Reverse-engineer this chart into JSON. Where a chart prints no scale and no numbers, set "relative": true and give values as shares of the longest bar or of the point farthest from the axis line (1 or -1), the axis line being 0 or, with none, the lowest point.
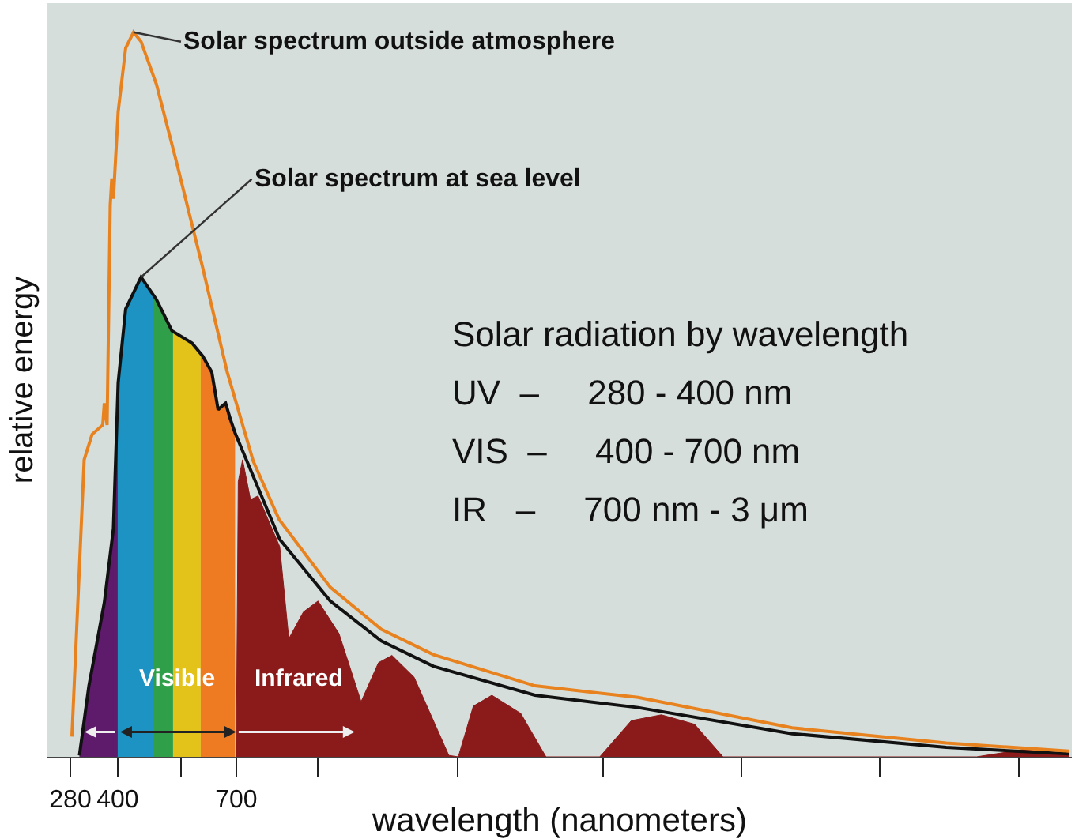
{
  "chart_data": {
    "type": "line",
    "relative": true,
    "xlabel": "wavelength (nanometers)",
    "ylabel": "relative energy",
    "xlim": [
      222,
      2815
    ],
    "xticks": [
      280,
      400,
      700,
      {
        "value": 560,
        "label": null
      },
      {
        "value": 907,
        "label": null
      },
      {
        "value": 1260,
        "label": null
      },
      {
        "value": 1628,
        "label": null
      },
      {
        "value": 1979,
        "label": null
      },
      {
        "value": 2329,
        "label": null
      },
      {
        "value": 2680,
        "label": null
      }
    ],
    "grid": false,
    "series": [
      {
        "type": "area",
        "color": "#5e1a6b",
        "x": [
          303,
          327,
          366,
          389,
          400
        ],
        "values": [
          0.002,
          0.098,
          0.213,
          0.315,
          0.516
        ]
      },
      {
        "type": "area",
        "color": "#1c93c2",
        "x": [
          400,
          401,
          420,
          459,
          490
        ],
        "values": [
          0.516,
          0.516,
          0.618,
          0.662,
          0.638
        ]
      },
      {
        "type": "area",
        "color": "#2f9f4a",
        "x": [
          490,
          498,
          537,
          540
        ],
        "values": [
          0.638,
          0.631,
          0.588,
          0.587
        ]
      },
      {
        "type": "area",
        "color": "#e3c21a",
        "x": [
          540,
          588,
          610
        ],
        "values": [
          0.587,
          0.571,
          0.556
        ]
      },
      {
        "type": "area",
        "color": "#ee7a22",
        "x": [
          610,
          615,
          638,
          654,
          673,
          685,
          697
        ],
        "values": [
          0.556,
          0.553,
          0.531,
          0.479,
          0.488,
          0.466,
          0.445
        ]
      },
      {
        "type": "area",
        "color": "#8b1a1a",
        "x": [
          700,
          705,
          716,
          736,
          755,
          810,
          833,
          870,
          907,
          960,
          1016,
          1060,
          1094,
          1150,
          1238,
          1262,
          1300,
          1347,
          1420,
          1484,
          1620,
          1700,
          1776,
          1860,
          1932,
          2574,
          2690,
          2808
        ],
        "values": [
          0,
          0.38,
          0.41,
          0.355,
          0.36,
          0.29,
          0.163,
          0.2,
          0.215,
          0.17,
          0.076,
          0.13,
          0.14,
          0.11,
          0.002,
          0,
          0.07,
          0.085,
          0.06,
          0,
          0,
          0.05,
          0.058,
          0.045,
          0,
          0,
          0.01,
          0.004
        ]
      },
      {
        "name": "Solar spectrum at sea level",
        "color": "#111111",
        "x": [
          303,
          327,
          366,
          389,
          401,
          420,
          459,
          498,
          537,
          588,
          615,
          638,
          654,
          673,
          685,
          697,
          810,
          938,
          1067,
          1199,
          1456,
          1717,
          2107,
          2497,
          2808
        ],
        "values": [
          0.002,
          0.098,
          0.213,
          0.315,
          0.516,
          0.618,
          0.662,
          0.631,
          0.588,
          0.571,
          0.553,
          0.531,
          0.479,
          0.488,
          0.466,
          0.447,
          0.3,
          0.215,
          0.16,
          0.125,
          0.085,
          0.068,
          0.032,
          0.013,
          0.004
        ]
      },
      {
        "name": "Solar spectrum outside atmosphere",
        "color": "#e8821e",
        "x": [
          284,
          315,
          335,
          362,
          366,
          373,
          381,
          385,
          389,
          401,
          420,
          440,
          459,
          498,
          549,
          615,
          677,
          743,
          808,
          938,
          1067,
          1199,
          1456,
          1717,
          2107,
          2497,
          2808
        ],
        "values": [
          0.028,
          0.41,
          0.445,
          0.458,
          0.488,
          0.458,
          0.761,
          0.798,
          0.77,
          0.89,
          0.978,
          1.0,
          0.987,
          0.928,
          0.82,
          0.675,
          0.531,
          0.408,
          0.328,
          0.234,
          0.176,
          0.141,
          0.098,
          0.082,
          0.04,
          0.019,
          0.008
        ]
      }
    ],
    "annotations": [
      "Solar radiation by wavelength",
      "UV  –     280 - 400 nm",
      "VIS  –     400 - 700 nm",
      "IR   –     700 nm - 3 μm",
      "Visible",
      "Infrared"
    ]
  }
}
